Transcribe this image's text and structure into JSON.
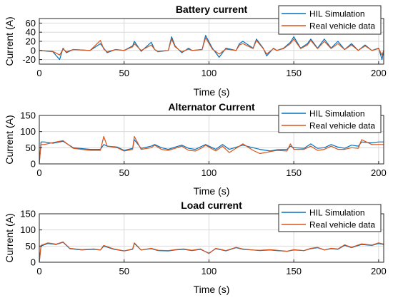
{
  "chart_data": [
    {
      "type": "line",
      "title": "Battery current",
      "xlabel": "Time (s)",
      "ylabel": "Current (A)",
      "xlim": [
        0,
        203
      ],
      "ylim": [
        -30,
        70
      ],
      "xticks": [
        0,
        50,
        100,
        150,
        200
      ],
      "yticks": [
        -20,
        0,
        20,
        40,
        60
      ],
      "grid": true,
      "legend_position": "top-right",
      "series": [
        {
          "name": "HIL Simulation",
          "color": "#0072BD",
          "x": [
            0,
            8,
            12,
            14,
            16,
            20,
            30,
            36,
            38,
            40,
            45,
            50,
            55,
            56,
            60,
            66,
            68,
            70,
            76,
            78,
            80,
            84,
            88,
            90,
            96,
            98,
            102,
            106,
            110,
            116,
            118,
            120,
            126,
            128,
            132,
            134,
            138,
            140,
            144,
            148,
            150,
            154,
            158,
            160,
            164,
            168,
            172,
            176,
            180,
            184,
            188,
            192,
            196,
            200,
            202,
            203
          ],
          "y": [
            0,
            -3,
            -20,
            5,
            -5,
            2,
            0,
            15,
            5,
            -5,
            2,
            0,
            10,
            20,
            -2,
            18,
            2,
            -3,
            0,
            30,
            10,
            -5,
            5,
            0,
            2,
            33,
            5,
            -15,
            5,
            0,
            15,
            20,
            5,
            25,
            5,
            -12,
            5,
            0,
            5,
            18,
            30,
            5,
            15,
            25,
            5,
            25,
            5,
            20,
            2,
            15,
            0,
            12,
            0,
            5,
            -20,
            0
          ]
        },
        {
          "name": "Real vehicle data",
          "color": "#D95319",
          "x": [
            0,
            8,
            12,
            14,
            16,
            20,
            30,
            36,
            38,
            40,
            45,
            50,
            55,
            56,
            60,
            66,
            68,
            70,
            76,
            78,
            80,
            84,
            88,
            90,
            96,
            98,
            102,
            106,
            110,
            116,
            118,
            120,
            126,
            128,
            132,
            134,
            138,
            140,
            144,
            148,
            150,
            154,
            158,
            160,
            164,
            168,
            172,
            176,
            180,
            184,
            188,
            192,
            196,
            200,
            202,
            203
          ],
          "y": [
            0,
            -2,
            -10,
            3,
            -3,
            2,
            0,
            22,
            3,
            -3,
            2,
            0,
            8,
            15,
            0,
            12,
            2,
            -2,
            0,
            25,
            8,
            -3,
            3,
            0,
            2,
            28,
            3,
            -8,
            3,
            0,
            12,
            15,
            4,
            22,
            4,
            -8,
            4,
            0,
            4,
            15,
            25,
            4,
            12,
            22,
            4,
            20,
            4,
            15,
            2,
            12,
            0,
            10,
            0,
            4,
            -10,
            0
          ]
        }
      ]
    },
    {
      "type": "line",
      "title": "Alternator Current",
      "xlabel": "Time (s)",
      "ylabel": "Current (A)",
      "xlim": [
        0,
        203
      ],
      "ylim": [
        0,
        150
      ],
      "xticks": [
        0,
        50,
        100,
        150,
        200
      ],
      "yticks": [
        0,
        50,
        100,
        150
      ],
      "grid": true,
      "legend_position": "top-right",
      "series": [
        {
          "name": "HIL Simulation",
          "color": "#0072BD",
          "x": [
            0,
            1,
            3,
            8,
            14,
            20,
            30,
            36,
            38,
            40,
            46,
            50,
            55,
            56,
            60,
            66,
            68,
            72,
            76,
            80,
            84,
            88,
            92,
            96,
            98,
            104,
            108,
            112,
            120,
            126,
            130,
            136,
            140,
            146,
            148,
            150,
            156,
            160,
            164,
            168,
            172,
            176,
            180,
            184,
            188,
            190,
            196,
            200,
            203
          ],
          "y": [
            2,
            68,
            68,
            64,
            70,
            50,
            45,
            45,
            60,
            55,
            52,
            42,
            48,
            75,
            48,
            55,
            60,
            50,
            45,
            52,
            58,
            48,
            45,
            55,
            60,
            45,
            60,
            45,
            58,
            50,
            45,
            40,
            44,
            45,
            55,
            50,
            48,
            62,
            48,
            50,
            60,
            52,
            48,
            58,
            55,
            68,
            65,
            68,
            68
          ]
        },
        {
          "name": "Real vehicle data",
          "color": "#D95319",
          "x": [
            0,
            1,
            3,
            8,
            14,
            20,
            30,
            36,
            38,
            40,
            46,
            50,
            55,
            56,
            60,
            66,
            68,
            72,
            76,
            80,
            84,
            88,
            92,
            96,
            98,
            104,
            108,
            112,
            120,
            126,
            130,
            136,
            140,
            146,
            148,
            150,
            156,
            160,
            164,
            168,
            172,
            176,
            180,
            184,
            188,
            190,
            196,
            200,
            203
          ],
          "y": [
            2,
            60,
            60,
            66,
            72,
            48,
            42,
            42,
            85,
            55,
            50,
            40,
            45,
            85,
            45,
            50,
            58,
            45,
            42,
            48,
            55,
            42,
            40,
            50,
            58,
            40,
            55,
            35,
            62,
            42,
            32,
            38,
            42,
            40,
            62,
            45,
            45,
            55,
            42,
            45,
            55,
            45,
            45,
            50,
            48,
            75,
            60,
            60,
            60
          ]
        }
      ]
    },
    {
      "type": "line",
      "title": "Load current",
      "xlabel": "Time (s)",
      "ylabel": "Current (A)",
      "xlim": [
        0,
        203
      ],
      "ylim": [
        0,
        150
      ],
      "xticks": [
        0,
        50,
        100,
        150,
        200
      ],
      "yticks": [
        0,
        50,
        100,
        150
      ],
      "grid": true,
      "legend_position": "top-right",
      "series": [
        {
          "name": "HIL Simulation",
          "color": "#0072BD",
          "x": [
            0,
            1,
            5,
            10,
            14,
            18,
            25,
            32,
            36,
            38,
            44,
            50,
            55,
            56,
            60,
            66,
            70,
            76,
            80,
            85,
            90,
            95,
            100,
            104,
            110,
            116,
            120,
            126,
            130,
            136,
            140,
            146,
            150,
            156,
            160,
            164,
            168,
            172,
            176,
            180,
            184,
            190,
            196,
            200,
            203
          ],
          "y": [
            0,
            50,
            58,
            55,
            62,
            42,
            38,
            40,
            38,
            50,
            40,
            35,
            40,
            58,
            38,
            42,
            36,
            35,
            38,
            40,
            36,
            40,
            28,
            42,
            35,
            45,
            40,
            38,
            36,
            38,
            36,
            34,
            38,
            36,
            42,
            45,
            38,
            42,
            40,
            52,
            45,
            55,
            52,
            58,
            55
          ]
        },
        {
          "name": "Real vehicle data",
          "color": "#D95319",
          "x": [
            0,
            1,
            5,
            10,
            14,
            18,
            25,
            32,
            36,
            38,
            44,
            50,
            55,
            56,
            60,
            66,
            70,
            76,
            80,
            85,
            90,
            95,
            100,
            104,
            110,
            116,
            120,
            126,
            130,
            136,
            140,
            146,
            150,
            156,
            160,
            164,
            168,
            172,
            176,
            180,
            184,
            190,
            196,
            200,
            203
          ],
          "y": [
            0,
            52,
            60,
            56,
            63,
            43,
            39,
            41,
            38,
            52,
            41,
            35,
            41,
            60,
            38,
            43,
            37,
            36,
            39,
            41,
            37,
            41,
            27,
            43,
            36,
            46,
            41,
            38,
            37,
            39,
            37,
            34,
            39,
            36,
            43,
            46,
            38,
            43,
            41,
            54,
            46,
            57,
            53,
            60,
            56
          ]
        }
      ]
    }
  ]
}
